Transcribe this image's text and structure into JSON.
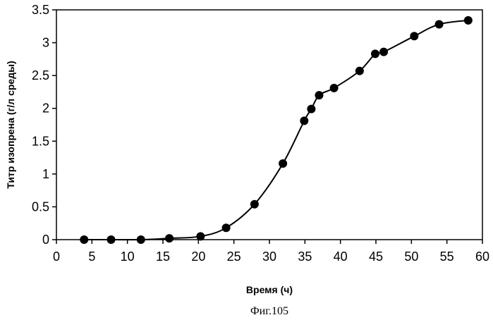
{
  "chart_data": {
    "type": "scatter",
    "title": "",
    "xlabel": "Время (ч)",
    "ylabel": "Титр изопрена (г/л среды)",
    "xlim": [
      0,
      60
    ],
    "ylim": [
      0,
      3.5
    ],
    "x_ticks": [
      "0",
      "5",
      "10",
      "15",
      "20",
      "25",
      "30",
      "35",
      "40",
      "45",
      "50",
      "55",
      "60"
    ],
    "y_ticks": [
      "0",
      "0.5",
      "1",
      "1.5",
      "2",
      "2.5",
      "3",
      "3.5"
    ],
    "grid": false,
    "legend": "none",
    "series": [
      {
        "x": [
          3.9,
          7.7,
          11.9,
          15.9,
          20.3,
          23.9,
          27.9,
          31.9,
          34.9,
          35.9,
          37.0,
          39.1,
          42.7,
          44.9,
          46.1,
          50.4,
          53.9,
          58.0
        ],
        "y": [
          0.0,
          0.0,
          0.0,
          0.02,
          0.05,
          0.18,
          0.54,
          1.16,
          1.81,
          1.99,
          2.2,
          2.31,
          2.57,
          2.83,
          2.86,
          3.1,
          3.28,
          3.34
        ],
        "color": "#000000",
        "marker": "circle",
        "line": "smooth"
      }
    ]
  },
  "caption": "Фиг.105"
}
